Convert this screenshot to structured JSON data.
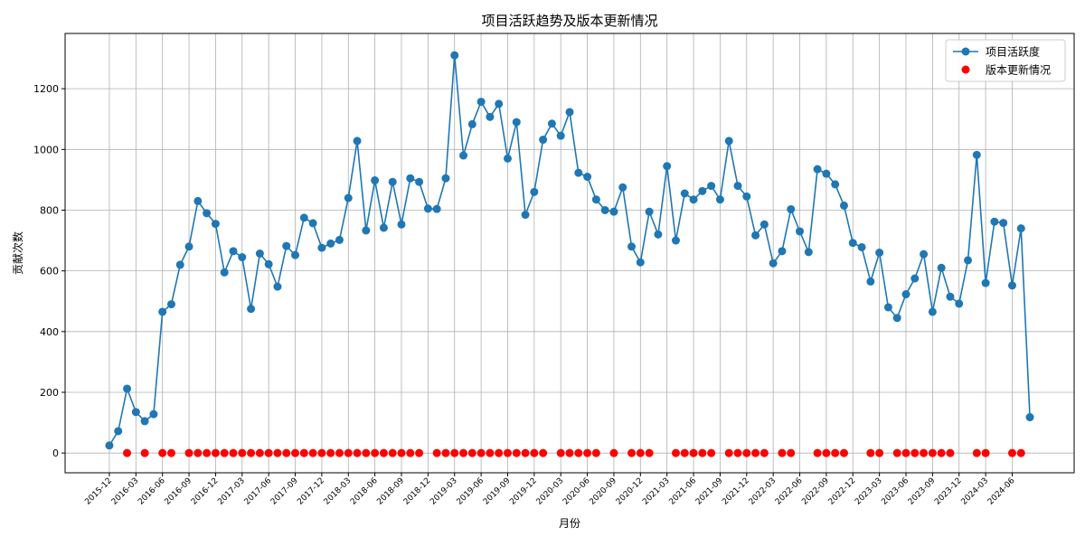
{
  "chart_data": {
    "type": "line",
    "title": "项目活跃趋势及版本更新情况",
    "xlabel": "月份",
    "ylabel": "贡献次数",
    "x": [
      "2015-12",
      "2016-01",
      "2016-02",
      "2016-03",
      "2016-04",
      "2016-05",
      "2016-06",
      "2016-07",
      "2016-08",
      "2016-09",
      "2016-10",
      "2016-11",
      "2016-12",
      "2017-01",
      "2017-02",
      "2017-03",
      "2017-04",
      "2017-05",
      "2017-06",
      "2017-07",
      "2017-08",
      "2017-09",
      "2017-10",
      "2017-11",
      "2017-12",
      "2018-01",
      "2018-02",
      "2018-03",
      "2018-04",
      "2018-05",
      "2018-06",
      "2018-07",
      "2018-08",
      "2018-09",
      "2018-10",
      "2018-11",
      "2018-12",
      "2019-01",
      "2019-02",
      "2019-03",
      "2019-04",
      "2019-05",
      "2019-06",
      "2019-07",
      "2019-08",
      "2019-09",
      "2019-10",
      "2019-11",
      "2019-12",
      "2020-01",
      "2020-02",
      "2020-03",
      "2020-04",
      "2020-05",
      "2020-06",
      "2020-07",
      "2020-08",
      "2020-09",
      "2020-10",
      "2020-11",
      "2020-12",
      "2021-01",
      "2021-02",
      "2021-03",
      "2021-04",
      "2021-05",
      "2021-06",
      "2021-07",
      "2021-08",
      "2021-09",
      "2021-10",
      "2021-11",
      "2021-12",
      "2022-01",
      "2022-02",
      "2022-03",
      "2022-04",
      "2022-05",
      "2022-06",
      "2022-07",
      "2022-08",
      "2022-09",
      "2022-10",
      "2022-11",
      "2022-12",
      "2023-01",
      "2023-02",
      "2023-03",
      "2023-04",
      "2023-05",
      "2023-06",
      "2023-07",
      "2023-08",
      "2023-09",
      "2023-10",
      "2023-11",
      "2023-12",
      "2024-01",
      "2024-02",
      "2024-03",
      "2024-04",
      "2024-05",
      "2024-06",
      "2024-07",
      "2024-08"
    ],
    "series": [
      {
        "name": "项目活跃度",
        "type": "line",
        "color": "#1f77b4",
        "values": [
          25,
          72,
          212,
          135,
          105,
          128,
          465,
          490,
          620,
          680,
          830,
          790,
          755,
          595,
          665,
          645,
          475,
          657,
          622,
          548,
          682,
          652,
          775,
          757,
          676,
          690,
          702,
          840,
          1028,
          733,
          898,
          742,
          893,
          753,
          905,
          893,
          805,
          804,
          905,
          1310,
          980,
          1083,
          1157,
          1107,
          1150,
          970,
          1090,
          785,
          860,
          1032,
          1085,
          1045,
          1123,
          923,
          910,
          835,
          800,
          795,
          875,
          680,
          628,
          795,
          720,
          945,
          700,
          855,
          835,
          863,
          880,
          835,
          1028,
          880,
          845,
          717,
          753,
          625,
          665,
          803,
          730,
          662,
          935,
          920,
          885,
          815,
          692,
          678,
          565,
          660,
          480,
          445,
          523,
          575,
          655,
          465,
          610,
          515,
          492,
          635,
          982,
          560,
          762,
          758,
          552,
          740,
          118
        ]
      },
      {
        "name": "版本更新情况",
        "type": "scatter",
        "color": "#ff0000",
        "x": [
          "2016-02",
          "2016-04",
          "2016-06",
          "2016-07",
          "2016-09",
          "2016-10",
          "2016-11",
          "2016-12",
          "2017-01",
          "2017-02",
          "2017-03",
          "2017-04",
          "2017-05",
          "2017-06",
          "2017-07",
          "2017-08",
          "2017-09",
          "2017-10",
          "2017-11",
          "2017-12",
          "2018-01",
          "2018-02",
          "2018-03",
          "2018-04",
          "2018-05",
          "2018-06",
          "2018-07",
          "2018-08",
          "2018-09",
          "2018-10",
          "2018-11",
          "2019-01",
          "2019-02",
          "2019-03",
          "2019-04",
          "2019-05",
          "2019-06",
          "2019-07",
          "2019-08",
          "2019-09",
          "2019-10",
          "2019-11",
          "2019-12",
          "2020-01",
          "2020-03",
          "2020-04",
          "2020-05",
          "2020-06",
          "2020-07",
          "2020-09",
          "2020-11",
          "2020-12",
          "2021-01",
          "2021-04",
          "2021-05",
          "2021-06",
          "2021-07",
          "2021-08",
          "2021-10",
          "2021-11",
          "2021-12",
          "2022-01",
          "2022-02",
          "2022-04",
          "2022-05",
          "2022-08",
          "2022-09",
          "2022-10",
          "2022-11",
          "2023-02",
          "2023-03",
          "2023-05",
          "2023-06",
          "2023-07",
          "2023-08",
          "2023-09",
          "2023-10",
          "2023-11",
          "2024-02",
          "2024-03",
          "2024-06",
          "2024-07"
        ],
        "values": [
          0,
          0,
          0,
          0,
          0,
          0,
          0,
          0,
          0,
          0,
          0,
          0,
          0,
          0,
          0,
          0,
          0,
          0,
          0,
          0,
          0,
          0,
          0,
          0,
          0,
          0,
          0,
          0,
          0,
          0,
          0,
          0,
          0,
          0,
          0,
          0,
          0,
          0,
          0,
          0,
          0,
          0,
          0,
          0,
          0,
          0,
          0,
          0,
          0,
          0,
          0,
          0,
          0,
          0,
          0,
          0,
          0,
          0,
          0,
          0,
          0,
          0,
          0,
          0,
          0,
          0,
          0,
          0,
          0,
          0,
          0,
          0,
          0,
          0,
          0,
          0,
          0,
          0,
          0,
          0,
          0,
          0
        ]
      }
    ],
    "xlim": [
      "2015-07",
      "2025-01"
    ],
    "xticks": [
      "2015-12",
      "2016-03",
      "2016-06",
      "2016-09",
      "2016-12",
      "2017-03",
      "2017-06",
      "2017-09",
      "2017-12",
      "2018-03",
      "2018-06",
      "2018-09",
      "2018-12",
      "2019-03",
      "2019-06",
      "2019-09",
      "2019-12",
      "2020-03",
      "2020-06",
      "2020-09",
      "2020-12",
      "2021-03",
      "2021-06",
      "2021-09",
      "2021-12",
      "2022-03",
      "2022-06",
      "2022-09",
      "2022-12",
      "2023-03",
      "2023-06",
      "2023-09",
      "2023-12",
      "2024-03",
      "2024-06"
    ],
    "ylim": [
      -65,
      1382
    ],
    "yticks": [
      0,
      200,
      400,
      600,
      800,
      1000,
      1200
    ],
    "grid": true,
    "legend": "upper right"
  }
}
